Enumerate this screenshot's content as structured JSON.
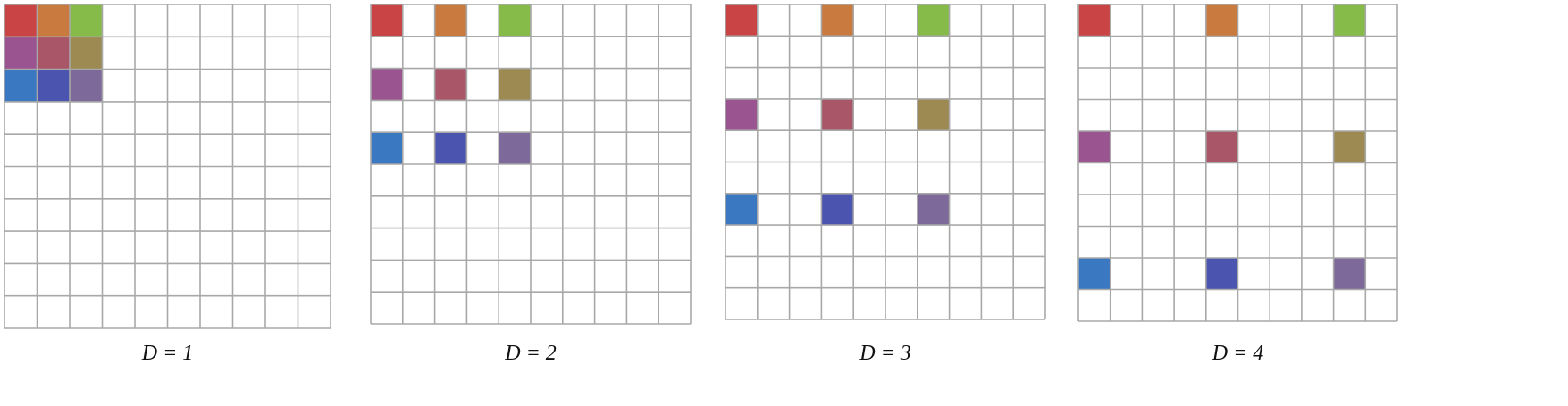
{
  "panels": [
    {
      "label": "D = 1"
    },
    {
      "label": "D = 2"
    },
    {
      "label": "D = 3"
    },
    {
      "label": "D = 4"
    }
  ]
}
